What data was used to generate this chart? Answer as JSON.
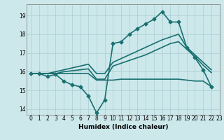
{
  "title": "",
  "xlabel": "Humidex (Indice chaleur)",
  "bg_color": "#cce8eb",
  "grid_color": "#aacdd2",
  "line_color": "#1a7070",
  "xlim": [
    -0.5,
    23
  ],
  "ylim": [
    13.7,
    19.6
  ],
  "yticks": [
    14,
    15,
    16,
    17,
    18,
    19
  ],
  "xticks": [
    0,
    1,
    2,
    3,
    4,
    5,
    6,
    7,
    8,
    9,
    10,
    11,
    12,
    13,
    14,
    15,
    16,
    17,
    18,
    19,
    20,
    21,
    22,
    23
  ],
  "lines": [
    {
      "x": [
        0,
        1,
        2,
        3,
        4,
        5,
        6,
        7,
        8,
        9,
        10,
        11,
        12,
        13,
        14,
        15,
        16,
        17,
        18,
        19,
        20,
        21,
        22
      ],
      "y": [
        15.9,
        15.9,
        15.75,
        15.85,
        15.5,
        15.3,
        15.2,
        14.7,
        13.8,
        14.5,
        17.5,
        17.6,
        18.0,
        18.3,
        18.55,
        18.8,
        19.2,
        18.65,
        18.65,
        17.3,
        16.75,
        16.1,
        15.2
      ],
      "marker": "D",
      "markersize": 2.5,
      "lw": 1.2,
      "zorder": 3
    },
    {
      "x": [
        0,
        1,
        2,
        3,
        4,
        5,
        6,
        7,
        8,
        9,
        10,
        11,
        12,
        13,
        14,
        15,
        16,
        17,
        18,
        19,
        20,
        21,
        22
      ],
      "y": [
        15.9,
        15.9,
        15.9,
        16.0,
        16.1,
        16.2,
        16.3,
        16.4,
        15.9,
        15.9,
        16.5,
        16.7,
        16.9,
        17.1,
        17.3,
        17.5,
        17.7,
        17.85,
        18.0,
        17.3,
        16.9,
        16.5,
        16.1
      ],
      "marker": null,
      "markersize": 0,
      "lw": 1.2,
      "zorder": 2
    },
    {
      "x": [
        0,
        1,
        2,
        3,
        4,
        5,
        6,
        7,
        8,
        9,
        10,
        11,
        12,
        13,
        14,
        15,
        16,
        17,
        18,
        19,
        20,
        21,
        22
      ],
      "y": [
        15.9,
        15.9,
        15.9,
        15.9,
        16.0,
        16.05,
        16.1,
        16.15,
        15.6,
        15.6,
        16.3,
        16.45,
        16.6,
        16.75,
        16.9,
        17.1,
        17.3,
        17.5,
        17.6,
        17.2,
        16.8,
        16.35,
        15.95
      ],
      "marker": null,
      "markersize": 0,
      "lw": 1.2,
      "zorder": 2
    },
    {
      "x": [
        0,
        1,
        2,
        3,
        4,
        5,
        6,
        7,
        8,
        9,
        10,
        11,
        12,
        13,
        14,
        15,
        16,
        17,
        18,
        19,
        20,
        21,
        22
      ],
      "y": [
        15.9,
        15.9,
        15.9,
        15.9,
        15.9,
        15.9,
        15.9,
        15.9,
        15.55,
        15.55,
        15.55,
        15.6,
        15.6,
        15.6,
        15.6,
        15.6,
        15.6,
        15.6,
        15.6,
        15.55,
        15.5,
        15.5,
        15.2
      ],
      "marker": null,
      "markersize": 0,
      "lw": 1.2,
      "zorder": 2
    }
  ]
}
